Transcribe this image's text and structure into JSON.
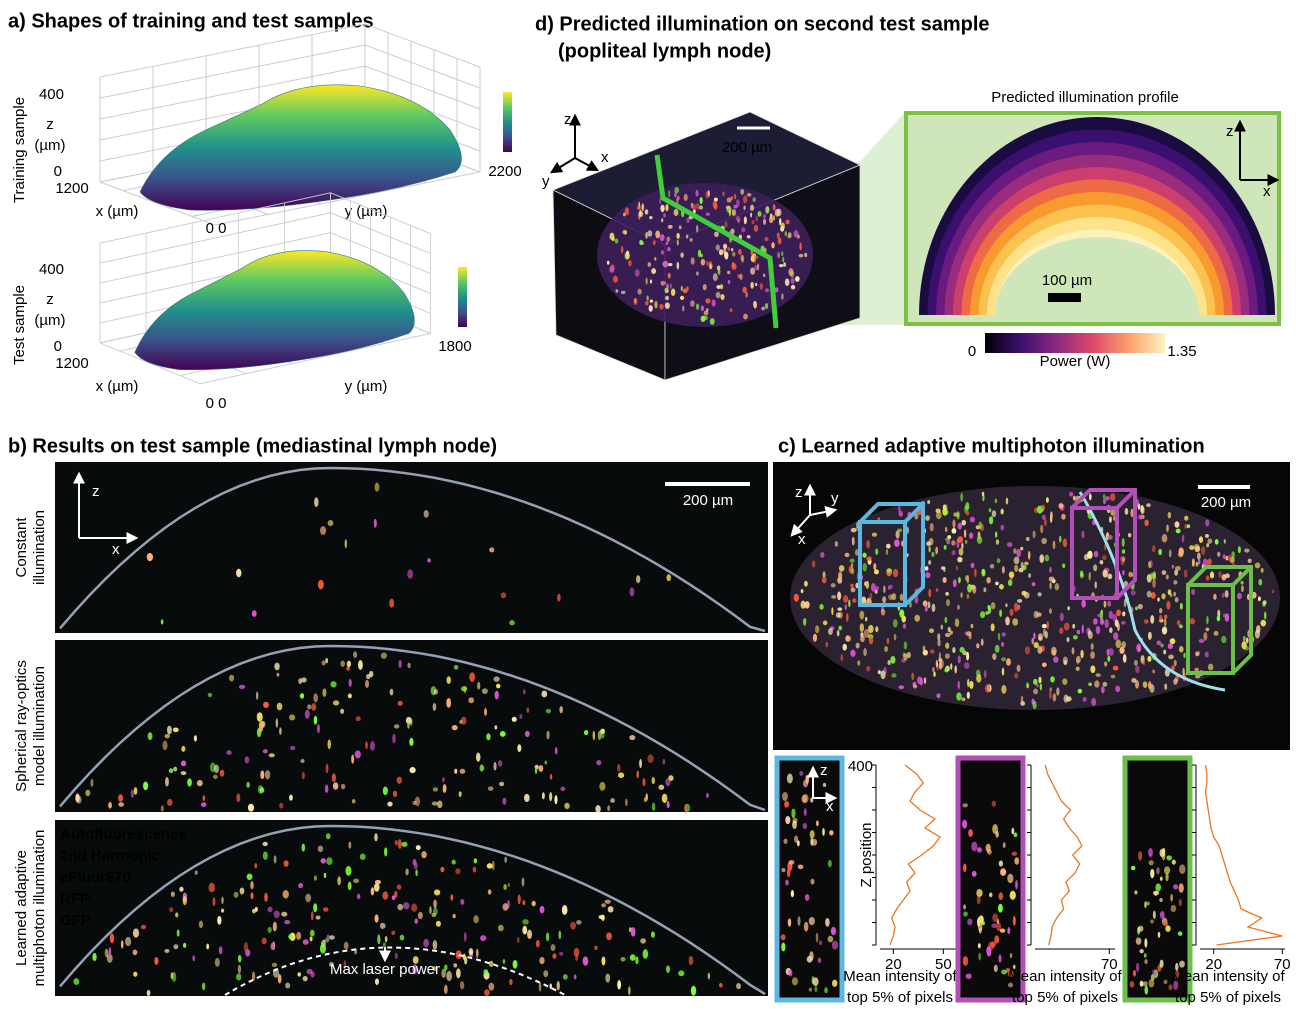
{
  "panel_a": {
    "title": "a) Shapes of training and test samples",
    "plots": [
      {
        "row_label": "Training sample",
        "z_top": "400",
        "z_label": "z",
        "z_unit": "(µm)",
        "z_bottom": "0",
        "x_end": "1200",
        "x_label": "x (µm)",
        "origin": "0 0",
        "y_label": "y (µm)",
        "y_end": "2200"
      },
      {
        "row_label": "Test sample",
        "z_top": "400",
        "z_label": "z",
        "z_unit": "(µm)",
        "z_bottom": "0",
        "x_end": "1200",
        "x_label": "x (µm)",
        "origin": "0 0",
        "y_label": "y (µm)",
        "y_end": "1800"
      }
    ]
  },
  "panel_d": {
    "title": "d) Predicted illumination on second test sample",
    "subtitle": "(popliteal lymph node)",
    "axes": [
      "z",
      "x",
      "y"
    ],
    "scale_bar": "200 µm",
    "profile_title": "Predicted illumination profile",
    "profile_axes": [
      "z",
      "x"
    ],
    "profile_scale": "100 µm",
    "colorbar": {
      "min": "0",
      "label": "Power (W)",
      "max": "1.35"
    }
  },
  "panel_b": {
    "title": "b) Results on test sample (mediastinal lymph node)",
    "rows": [
      {
        "lines": [
          "Constant",
          "illumination"
        ]
      },
      {
        "lines": [
          "Spherical ray-optics",
          "model illumination"
        ]
      },
      {
        "lines": [
          "Learned adaptive",
          "multiphoton illumination"
        ]
      }
    ],
    "axes": [
      "z",
      "x"
    ],
    "scale_bar": "200 µm",
    "legend": [
      {
        "name": "Autofluorescence",
        "color": "#f2dc1e"
      },
      {
        "name": "2nd Harmonic",
        "color": "#5aa6dc"
      },
      {
        "name": "eFluor670",
        "color": "#d957d2"
      },
      {
        "name": "RFP",
        "color": "#ff3a2a"
      },
      {
        "name": "GFP",
        "color": "#6fd43a"
      }
    ],
    "annotation": "Max laser power"
  },
  "panel_c": {
    "title": "c) Learned adaptive multiphoton illumination",
    "axes": [
      "z",
      "y",
      "x"
    ],
    "scale_bar": "200 µm",
    "inset_axes": [
      "z",
      "x"
    ],
    "y_label": "Z position",
    "x_label": [
      "Mean intensity of",
      "top 5% of pixels"
    ],
    "profiles": [
      {
        "color": "#5bb8e0",
        "xlim": [
          12,
          60
        ],
        "xticks": [
          20,
          50
        ],
        "ylim": [
          0,
          400
        ],
        "yticks": [
          400
        ],
        "z": [
          0,
          20,
          40,
          60,
          80,
          100,
          120,
          140,
          160,
          180,
          200,
          220,
          240,
          260,
          280,
          300,
          320,
          340,
          360,
          380,
          400
        ],
        "intensity": [
          18,
          20,
          21,
          19,
          22,
          26,
          30,
          28,
          33,
          29,
          37,
          44,
          48,
          39,
          45,
          36,
          30,
          33,
          38,
          34,
          27
        ]
      },
      {
        "color": "#b24fb8",
        "xlim": [
          5,
          75
        ],
        "xticks": [
          70
        ],
        "ylim": [
          0,
          400
        ],
        "z": [
          0,
          20,
          40,
          60,
          80,
          100,
          120,
          140,
          160,
          180,
          200,
          220,
          240,
          260,
          280,
          300,
          320,
          340,
          360,
          380,
          400
        ],
        "intensity": [
          17,
          19,
          20,
          24,
          30,
          28,
          35,
          32,
          40,
          44,
          38,
          46,
          42,
          35,
          30,
          36,
          28,
          24,
          20,
          16,
          14
        ]
      },
      {
        "color": "#6cc04a",
        "xlim": [
          10,
          72
        ],
        "xticks": [
          20,
          70
        ],
        "ylim": [
          0,
          400
        ],
        "z": [
          0,
          20,
          40,
          60,
          80,
          100,
          120,
          140,
          160,
          180,
          200,
          220,
          240,
          260,
          280,
          300,
          320,
          340,
          360,
          380,
          400
        ],
        "intensity": [
          22,
          70,
          45,
          55,
          40,
          38,
          35,
          32,
          30,
          28,
          26,
          24,
          20,
          18,
          17,
          16,
          15,
          14,
          15,
          15,
          14
        ]
      }
    ]
  }
}
